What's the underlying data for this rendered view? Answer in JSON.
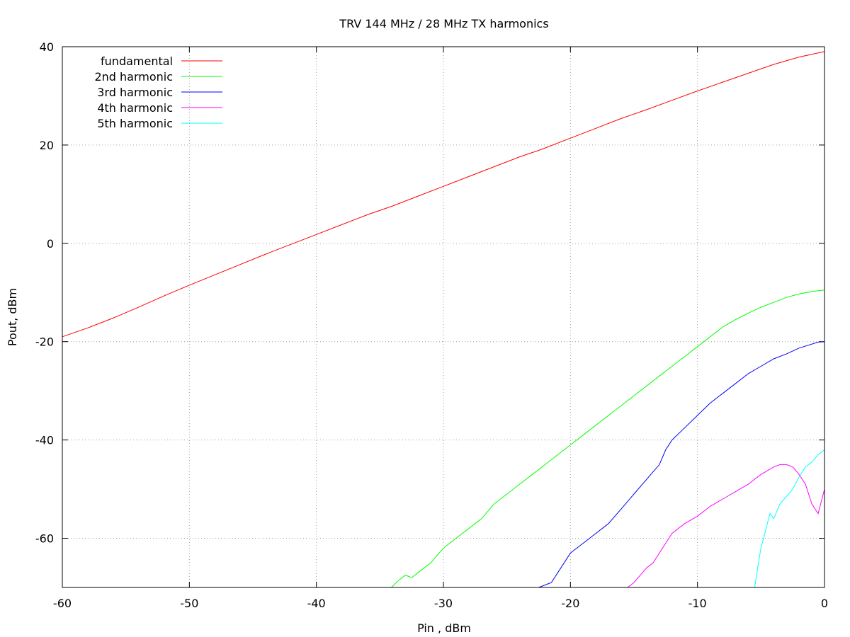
{
  "chart_data": {
    "type": "line",
    "title": "TRV 144 MHz / 28 MHz TX harmonics",
    "xlabel": "Pin , dBm",
    "ylabel": "Pout, dBm",
    "xlim": [
      -60,
      0
    ],
    "ylim": [
      -70,
      40
    ],
    "xticks": [
      -60,
      -50,
      -40,
      -30,
      -20,
      -10,
      0
    ],
    "yticks": [
      -60,
      -40,
      -20,
      0,
      20,
      40
    ],
    "grid": true,
    "legend_position": "top-left",
    "series": [
      {
        "name": "fundamental",
        "color": "#ff0000",
        "x": [
          -60,
          -58,
          -56,
          -54,
          -52,
          -50,
          -48,
          -46,
          -44,
          -42,
          -40,
          -38,
          -36,
          -34,
          -32,
          -30,
          -28,
          -26,
          -24,
          -22.5,
          -22,
          -20,
          -18,
          -16,
          -14,
          -12,
          -10,
          -8,
          -6,
          -4,
          -2,
          0
        ],
        "y": [
          -19,
          -17.2,
          -15.2,
          -13,
          -10.7,
          -8.5,
          -6.4,
          -4.3,
          -2.2,
          -0.2,
          1.8,
          3.8,
          5.8,
          7.6,
          9.6,
          11.6,
          13.6,
          15.6,
          17.6,
          18.9,
          19.4,
          21.4,
          23.4,
          25.4,
          27.2,
          29.1,
          31.0,
          32.8,
          34.6,
          36.4,
          37.9,
          39.0
        ]
      },
      {
        "name": "2nd harmonic",
        "color": "#00ff00",
        "x": [
          -34.1,
          -33.5,
          -33,
          -32.5,
          -32,
          -31,
          -30,
          -29,
          -28,
          -27,
          -26,
          -25,
          -24,
          -23,
          -22,
          -21,
          -20,
          -19,
          -18,
          -17,
          -16,
          -15,
          -14,
          -13,
          -12,
          -11,
          -10,
          -9,
          -8,
          -7,
          -6,
          -5,
          -4,
          -3,
          -2,
          -1,
          0
        ],
        "y": [
          -70,
          -68.5,
          -67.5,
          -68,
          -67,
          -65,
          -62,
          -60,
          -58,
          -56,
          -53,
          -51,
          -49,
          -47,
          -45,
          -43,
          -41,
          -39,
          -37,
          -35,
          -33,
          -31,
          -29,
          -27,
          -25,
          -23,
          -21,
          -19,
          -17,
          -15.5,
          -14.2,
          -13,
          -12,
          -11,
          -10.3,
          -9.8,
          -9.5
        ]
      },
      {
        "name": "3rd harmonic",
        "color": "#0000ff",
        "x": [
          -22.5,
          -22,
          -21.5,
          -21,
          -20.5,
          -20,
          -19.5,
          -19,
          -18,
          -17,
          -16,
          -15,
          -14,
          -13,
          -12.5,
          -12,
          -11,
          -10,
          -9,
          -8,
          -7,
          -6,
          -5,
          -4,
          -3,
          -2,
          -1,
          -0.5,
          0
        ],
        "y": [
          -70,
          -69.5,
          -69,
          -67,
          -65,
          -63,
          -62,
          -61,
          -59,
          -57,
          -54,
          -51,
          -48,
          -45,
          -42,
          -40,
          -37.5,
          -35,
          -32.5,
          -30.5,
          -28.5,
          -26.5,
          -25,
          -23.5,
          -22.5,
          -21.3,
          -20.5,
          -20.1,
          -20
        ]
      },
      {
        "name": "4th harmonic",
        "color": "#ff00ff",
        "x": [
          -15.5,
          -15,
          -14.5,
          -14,
          -13.5,
          -13,
          -12.5,
          -12,
          -11,
          -10,
          -9,
          -8,
          -7,
          -6,
          -5,
          -4,
          -3.5,
          -3,
          -2.5,
          -2,
          -1.5,
          -1,
          -0.5,
          0
        ],
        "y": [
          -70,
          -69,
          -67.5,
          -66,
          -65,
          -63,
          -61,
          -59,
          -57,
          -55.5,
          -53.5,
          -52,
          -50.5,
          -49,
          -47,
          -45.5,
          -45,
          -45,
          -45.5,
          -47,
          -49,
          -53,
          -55,
          -50
        ]
      },
      {
        "name": "5th harmonic",
        "color": "#00ffff",
        "x": [
          -5.5,
          -5.2,
          -5,
          -4.6,
          -4.3,
          -4,
          -3.5,
          -3,
          -2.5,
          -2,
          -1.5,
          -1,
          -0.5,
          0
        ],
        "y": [
          -70,
          -65,
          -62,
          -58,
          -55,
          -56,
          -53,
          -51.5,
          -50,
          -47.5,
          -45.5,
          -44.5,
          -43,
          -42
        ]
      }
    ]
  }
}
